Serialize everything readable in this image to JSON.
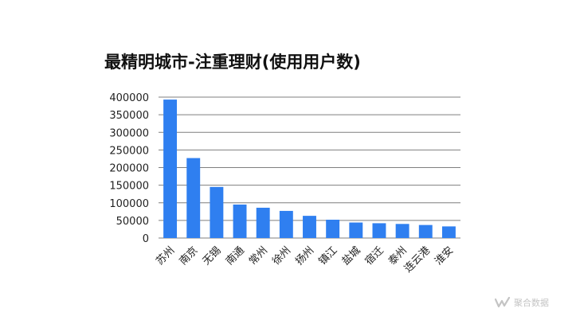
{
  "chart_data": {
    "type": "bar",
    "title": "最精明城市-注重理财(使用用户数)",
    "xlabel": "",
    "ylabel": "",
    "categories": [
      "苏州",
      "南京",
      "无锡",
      "南通",
      "常州",
      "徐州",
      "扬州",
      "镇江",
      "盐城",
      "宿迁",
      "泰州",
      "连云港",
      "淮安"
    ],
    "values": [
      393000,
      227000,
      145000,
      95000,
      86000,
      77000,
      63000,
      52000,
      44000,
      42000,
      40000,
      37000,
      33000
    ],
    "ylim": [
      0,
      400000
    ],
    "yticks": [
      0,
      50000,
      100000,
      150000,
      200000,
      250000,
      300000,
      350000,
      400000
    ],
    "bar_color": "#2f7ff0",
    "grid": true,
    "legend": "none"
  },
  "watermark": {
    "text": "聚合数据",
    "icon": "wave-logo-icon",
    "color": "#c4c4c4"
  }
}
